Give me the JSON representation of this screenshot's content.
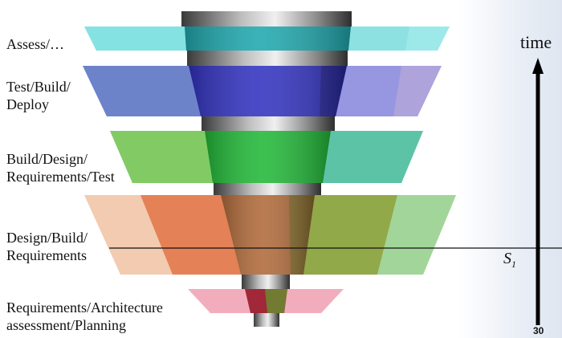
{
  "stages": [
    {
      "id": "assess",
      "label": "Assess/…",
      "color": "#2fc8c8"
    },
    {
      "id": "test-build-deploy",
      "label": "Test/Build/\nDeploy",
      "color": "#3c3cc8"
    },
    {
      "id": "build-design-req-test",
      "label": "Build/Design/\nRequirements/Test",
      "color": "#3cc83c"
    },
    {
      "id": "design-build-req",
      "label": "Design/Build/\nRequirements",
      "color": "#e0703c"
    },
    {
      "id": "req-arch-planning",
      "label": "Requirements/Architecture\nassessment/Planning",
      "color": "#e05a78"
    }
  ],
  "time_axis": {
    "label": "time"
  },
  "s1": {
    "label": "S",
    "subscript": "1"
  },
  "page_number": "30"
}
